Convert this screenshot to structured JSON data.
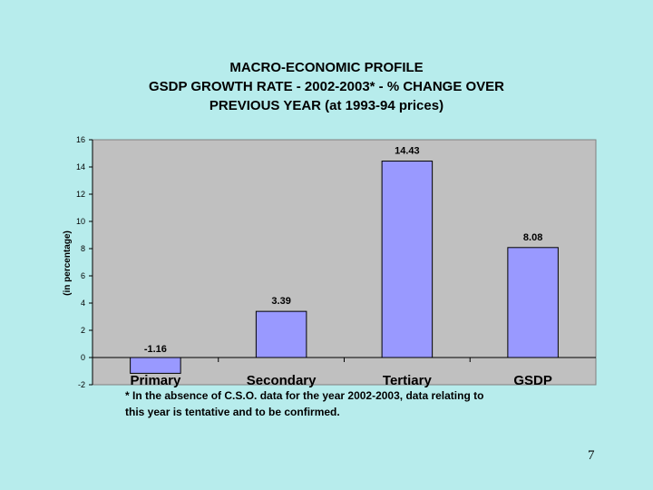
{
  "chart_data": {
    "type": "bar",
    "title_lines": [
      "MACRO-ECONOMIC PROFILE",
      "GSDP GROWTH RATE - 2002-2003* - % CHANGE OVER",
      "PREVIOUS YEAR (at 1993-94 prices)"
    ],
    "categories": [
      "Primary",
      "Secondary",
      "Tertiary",
      "GSDP"
    ],
    "values": [
      -1.16,
      3.39,
      14.43,
      8.08
    ],
    "data_labels": [
      "-1.16",
      "3.39",
      "14.43",
      "8.08"
    ],
    "ylabel": "(in percentage)",
    "xlabel": "",
    "ylim": [
      -2,
      16
    ],
    "yticks": [
      -2,
      0,
      2,
      4,
      6,
      8,
      10,
      12,
      14,
      16
    ],
    "grid": false,
    "legend": "none"
  },
  "colors": {
    "background": "#b7ecec",
    "plot_area": "#c0c0c0",
    "bar_fill": "#9999ff",
    "bar_stroke": "#000000"
  },
  "footnote_lines": [
    "* In the absence of C.S.O. data for the year 2002-2003, data relating to",
    "this year is tentative and to be confirmed."
  ],
  "page_number": "7"
}
